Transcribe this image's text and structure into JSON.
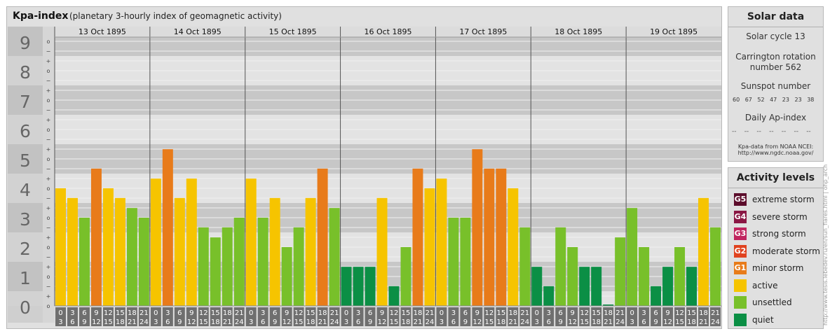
{
  "header": {
    "title": "Kpa-index",
    "subtitle": "(planetary 3-hourly index of geomagnetic activity)"
  },
  "chart_data": {
    "type": "bar",
    "title": "Kpa-index",
    "subtitle": "(planetary 3-hourly index of geomagnetic activity)",
    "ylim": [
      0,
      9
    ],
    "y_ticks": [
      "0",
      "1",
      "2",
      "3",
      "4",
      "5",
      "6",
      "7",
      "8",
      "9"
    ],
    "y_sub_labels": [
      "o",
      "+",
      "−",
      "o",
      "+",
      "−",
      "o",
      "+",
      "−",
      "o",
      "+",
      "−",
      "o",
      "+",
      "−",
      "o",
      "+",
      "−",
      "o",
      "+",
      "−",
      "o",
      "+",
      "−",
      "o",
      "+",
      "−",
      "o"
    ],
    "days": [
      "13 Oct 1895",
      "14 Oct 1895",
      "15 Oct 1895",
      "16 Oct 1895",
      "17 Oct 1895",
      "18 Oct 1895",
      "19 Oct 1895"
    ],
    "interval_labels": [
      [
        "0",
        "3"
      ],
      [
        "3",
        "6"
      ],
      [
        "6",
        "9"
      ],
      [
        "9",
        "12"
      ],
      [
        "12",
        "15"
      ],
      [
        "15",
        "18"
      ],
      [
        "18",
        "21"
      ],
      [
        "21",
        "24"
      ]
    ],
    "values": [
      [
        4.0,
        3.67,
        3.0,
        4.67,
        4.0,
        3.67,
        3.33,
        3.0
      ],
      [
        4.33,
        5.33,
        3.67,
        4.33,
        2.67,
        2.33,
        2.67,
        3.0
      ],
      [
        4.33,
        3.0,
        3.67,
        2.0,
        2.67,
        3.67,
        4.67,
        3.33
      ],
      [
        1.33,
        1.33,
        1.33,
        3.67,
        0.67,
        2.0,
        4.67,
        4.0
      ],
      [
        4.33,
        3.0,
        3.0,
        5.33,
        4.67,
        4.67,
        4.0,
        2.67
      ],
      [
        1.33,
        0.67,
        2.67,
        2.0,
        1.33,
        1.33,
        0.0,
        2.33
      ],
      [
        3.33,
        2.0,
        0.67,
        1.33,
        2.0,
        1.33,
        3.67,
        2.67
      ]
    ],
    "grid": true
  },
  "solar": {
    "title": "Solar data",
    "cycle": "Solar cycle 13",
    "carrington_line1": "Carrington rotation",
    "carrington_line2": "number 562",
    "sunspot_title": "Sunspot number",
    "sunspot_values": [
      "60",
      "67",
      "52",
      "47",
      "23",
      "23",
      "38"
    ],
    "ap_title": "Daily Ap-index",
    "ap_values": [
      "--",
      "--",
      "--",
      "--",
      "--",
      "--",
      "--"
    ],
    "source_line1": "Kpa-data from NOAA NCEI:",
    "source_line2": "http://www.ngdc.noaa.gov/"
  },
  "levels": {
    "title": "Activity levels",
    "items": [
      {
        "badge": "G5",
        "label": "extreme storm",
        "color": "#5c0d2b"
      },
      {
        "badge": "G4",
        "label": "severe storm",
        "color": "#8a1744"
      },
      {
        "badge": "G3",
        "label": "strong storm",
        "color": "#c0245e"
      },
      {
        "badge": "G2",
        "label": "moderate storm",
        "color": "#e0421f"
      },
      {
        "badge": "G1",
        "label": "minor storm",
        "color": "#e87b1a"
      },
      {
        "badge": "",
        "label": "active",
        "color": "#f6c400"
      },
      {
        "badge": "",
        "label": "unsettled",
        "color": "#78c02a"
      },
      {
        "badge": "",
        "label": "quiet",
        "color": "#0b8f45"
      }
    ]
  },
  "colors": {
    "quiet": "#0b8f45",
    "unsettled": "#78c02a",
    "active": "#f6c400",
    "storm": "#e87b1a"
  },
  "copyright": "http://www.tesis.lebedev.ru/en/sun_flares.html | ohp_archive.pho"
}
